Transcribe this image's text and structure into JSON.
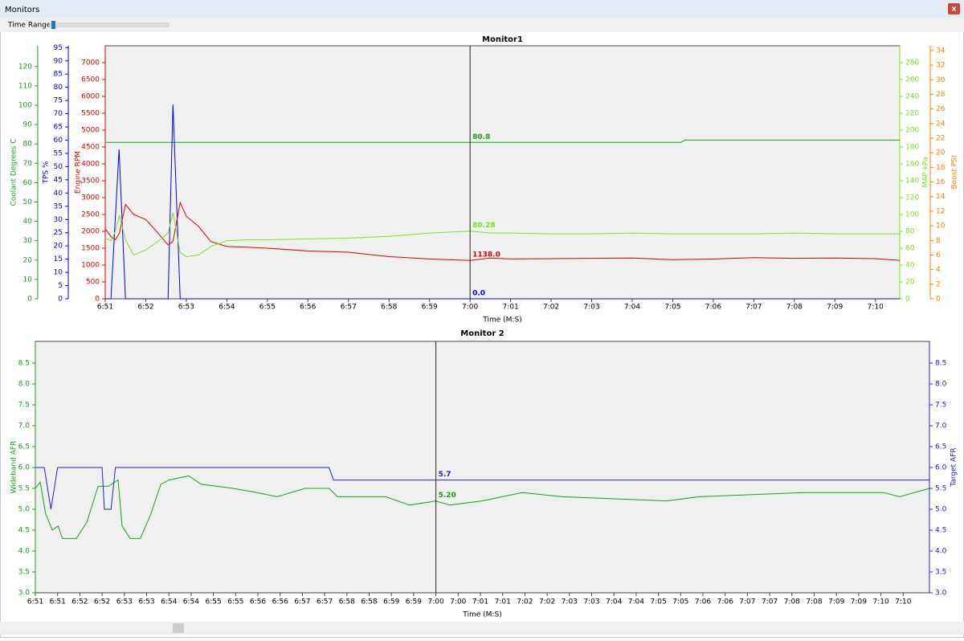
{
  "window": {
    "title": "Monitors",
    "close": "x"
  },
  "controls": {
    "time_range": "Time Range"
  },
  "chart_data": [
    {
      "type": "line",
      "title": "Monitor1",
      "x_label": "Time (M:S)",
      "xlim": [
        411,
        430.6
      ],
      "xticks": [
        {
          "value": 411,
          "label": "6:51"
        },
        {
          "value": 412,
          "label": "6:52"
        },
        {
          "value": 413,
          "label": "6:53"
        },
        {
          "value": 414,
          "label": "6:54"
        },
        {
          "value": 415,
          "label": "6:55"
        },
        {
          "value": 416,
          "label": "6:56"
        },
        {
          "value": 417,
          "label": "6:57"
        },
        {
          "value": 418,
          "label": "6:58"
        },
        {
          "value": 419,
          "label": "6:59"
        },
        {
          "value": 420,
          "label": "7:00"
        },
        {
          "value": 421,
          "label": "7:01"
        },
        {
          "value": 422,
          "label": "7:02"
        },
        {
          "value": 423,
          "label": "7:03"
        },
        {
          "value": 424,
          "label": "7:04"
        },
        {
          "value": 425,
          "label": "7:05"
        },
        {
          "value": 426,
          "label": "7:06"
        },
        {
          "value": 427,
          "label": "7:07"
        },
        {
          "value": 428,
          "label": "7:08"
        },
        {
          "value": 429,
          "label": "7:09"
        },
        {
          "value": 430,
          "label": "7:10"
        }
      ],
      "cursor": 420,
      "y_axes": [
        {
          "label": "Coolant Degrees C",
          "color": "#1a9e1a",
          "ylim": [
            0,
            130.7
          ],
          "yticks": [
            0,
            10,
            20,
            30,
            40,
            50,
            60,
            70,
            80,
            90,
            100,
            110,
            120
          ]
        },
        {
          "label": "TPS %",
          "color": "#0000ee",
          "ylim": [
            0,
            95.7
          ],
          "yticks": [
            0,
            5,
            10,
            15,
            20,
            25,
            30,
            35,
            40,
            45,
            50,
            55,
            60,
            65,
            70,
            75,
            80,
            85,
            90,
            95
          ]
        },
        {
          "label": "Engine RPM",
          "color": "#e00000",
          "ylim": [
            0,
            7500
          ],
          "yticks": [
            0,
            500,
            1000,
            1500,
            2000,
            2500,
            3000,
            3500,
            4000,
            4500,
            5000,
            5500,
            6000,
            6500,
            7000
          ]
        },
        {
          "label": "MAP kPa",
          "color": "#7ee01e",
          "ylim": [
            0,
            300
          ],
          "yticks": [
            0,
            20,
            40,
            60,
            80,
            100,
            120,
            140,
            160,
            180,
            200,
            220,
            240,
            260,
            280
          ]
        },
        {
          "label": "Boost PSI",
          "color": "#ff8000",
          "ylim": [
            0,
            34.65
          ],
          "yticks": [
            0,
            2,
            4,
            6,
            8,
            10,
            12,
            14,
            16,
            18,
            20,
            22,
            24,
            26,
            28,
            30,
            32,
            34
          ]
        }
      ],
      "series": [
        {
          "name": "Coolant Degrees C",
          "axis": 0,
          "color": "#1a9e1a",
          "cursor_label": "80.8",
          "x": [
            411,
            425.2,
            425.3,
            430.6
          ],
          "values": [
            80.8,
            80.8,
            82,
            82
          ]
        },
        {
          "name": "TPS %",
          "axis": 1,
          "color": "#0000ee",
          "cursor_label": "0.0",
          "x": [
            411,
            411.14,
            411.34,
            411.5,
            412.55,
            412.67,
            412.85,
            430.6
          ],
          "values": [
            0,
            0,
            56.5,
            0,
            0,
            73.5,
            0,
            0
          ]
        },
        {
          "name": "Engine RPM",
          "axis": 2,
          "color": "#e00000",
          "cursor_label": "1138.0",
          "x": [
            411,
            411.15,
            411.25,
            411.35,
            411.5,
            411.7,
            412,
            412.3,
            412.55,
            412.67,
            412.85,
            413,
            413.3,
            413.6,
            414,
            414.5,
            415,
            416,
            417,
            418,
            419,
            420,
            420.5,
            421,
            422,
            423,
            424,
            425,
            426,
            427,
            428,
            429,
            430,
            430.6
          ],
          "values": [
            2070,
            1830,
            1750,
            1950,
            2800,
            2500,
            2350,
            1950,
            1600,
            1700,
            2850,
            2450,
            2150,
            1700,
            1550,
            1530,
            1500,
            1420,
            1380,
            1250,
            1180,
            1138,
            1210,
            1180,
            1190,
            1200,
            1210,
            1160,
            1180,
            1220,
            1200,
            1210,
            1190,
            1140
          ]
        },
        {
          "name": "MAP kPa",
          "axis": 3,
          "color": "#7ee01e",
          "cursor_label": "80.28",
          "x": [
            411,
            411.15,
            411.25,
            411.35,
            411.5,
            411.7,
            412,
            412.3,
            412.55,
            412.67,
            412.85,
            413,
            413.3,
            413.6,
            414,
            414.5,
            415,
            416,
            417,
            418,
            419,
            420,
            420.5,
            421,
            422,
            423,
            424,
            425,
            426,
            427,
            428,
            429,
            430,
            430.6
          ],
          "values": [
            72,
            69,
            80,
            99,
            70,
            52,
            58,
            68,
            78,
            102,
            55,
            50,
            52,
            62,
            69,
            70,
            70,
            71,
            72,
            74,
            78,
            80.28,
            78,
            78,
            77,
            77,
            78,
            77,
            77,
            77,
            78,
            77,
            77,
            77
          ]
        }
      ]
    },
    {
      "type": "line",
      "title": "Monitor 2",
      "x_label": "Time (M:S)",
      "xlim": [
        411,
        431.09
      ],
      "xticks": [
        {
          "value": 411,
          "label": "6:51"
        },
        {
          "value": 411.5,
          "label": "6:51"
        },
        {
          "value": 412,
          "label": "6:52"
        },
        {
          "value": 412.5,
          "label": "6:52"
        },
        {
          "value": 413,
          "label": "6:53"
        },
        {
          "value": 413.5,
          "label": "6:53"
        },
        {
          "value": 414,
          "label": "6:54"
        },
        {
          "value": 414.5,
          "label": "6:54"
        },
        {
          "value": 415,
          "label": "6:55"
        },
        {
          "value": 415.5,
          "label": "6:55"
        },
        {
          "value": 416,
          "label": "6:56"
        },
        {
          "value": 416.5,
          "label": "6:56"
        },
        {
          "value": 417,
          "label": "6:57"
        },
        {
          "value": 417.5,
          "label": "6:57"
        },
        {
          "value": 418,
          "label": "6:58"
        },
        {
          "value": 418.5,
          "label": "6:58"
        },
        {
          "value": 419,
          "label": "6:59"
        },
        {
          "value": 419.5,
          "label": "6:59"
        },
        {
          "value": 420,
          "label": "7:00"
        },
        {
          "value": 420.5,
          "label": "7:00"
        },
        {
          "value": 421,
          "label": "7:01"
        },
        {
          "value": 421.5,
          "label": "7:01"
        },
        {
          "value": 422,
          "label": "7:02"
        },
        {
          "value": 422.5,
          "label": "7:02"
        },
        {
          "value": 423,
          "label": "7:03"
        },
        {
          "value": 423.5,
          "label": "7:03"
        },
        {
          "value": 424,
          "label": "7:04"
        },
        {
          "value": 424.5,
          "label": "7:04"
        },
        {
          "value": 425,
          "label": "7:05"
        },
        {
          "value": 425.5,
          "label": "7:05"
        },
        {
          "value": 426,
          "label": "7:06"
        },
        {
          "value": 426.5,
          "label": "7:06"
        },
        {
          "value": 427,
          "label": "7:07"
        },
        {
          "value": 427.5,
          "label": "7:07"
        },
        {
          "value": 428,
          "label": "7:08"
        },
        {
          "value": 428.5,
          "label": "7:08"
        },
        {
          "value": 429,
          "label": "7:09"
        },
        {
          "value": 429.5,
          "label": "7:09"
        },
        {
          "value": 430,
          "label": "7:10"
        },
        {
          "value": 430.5,
          "label": "7:10"
        }
      ],
      "cursor": 420,
      "y_axes": [
        {
          "label": "Wideband AFR",
          "color": "#1a9e1a",
          "ylim": [
            3,
            9.02
          ],
          "yticks": [
            {
              "value": 3,
              "label": "3.0"
            },
            {
              "value": 3.5,
              "label": "3.5"
            },
            {
              "value": 4,
              "label": "4.0"
            },
            {
              "value": 4.5,
              "label": "4.5"
            },
            {
              "value": 5,
              "label": "5.0"
            },
            {
              "value": 5.5,
              "label": "5.5"
            },
            {
              "value": 6,
              "label": "6.0"
            },
            {
              "value": 6.5,
              "label": "6.5"
            },
            {
              "value": 7,
              "label": "7.0"
            },
            {
              "value": 7.5,
              "label": "7.5"
            },
            {
              "value": 8,
              "label": "8.0"
            },
            {
              "value": 8.5,
              "label": "8.5"
            }
          ]
        },
        {
          "label": "Target AFR",
          "color": "#2222cc",
          "ylim": [
            3,
            9.02
          ],
          "yticks": [
            {
              "value": 3,
              "label": "3.0"
            },
            {
              "value": 3.5,
              "label": "3.5"
            },
            {
              "value": 4,
              "label": "4.0"
            },
            {
              "value": 4.5,
              "label": "4.5"
            },
            {
              "value": 5,
              "label": "5.0"
            },
            {
              "value": 5.5,
              "label": "5.5"
            },
            {
              "value": 6,
              "label": "6.0"
            },
            {
              "value": 6.5,
              "label": "6.5"
            },
            {
              "value": 7,
              "label": "7.0"
            },
            {
              "value": 7.5,
              "label": "7.5"
            },
            {
              "value": 8,
              "label": "8.0"
            },
            {
              "value": 8.5,
              "label": "8.5"
            }
          ]
        }
      ],
      "series": [
        {
          "name": "Wideband AFR",
          "axis": 0,
          "color": "#1a9e1a",
          "cursor_label": "5.20",
          "x": [
            411,
            411.11,
            411.23,
            411.38,
            411.51,
            411.61,
            411.92,
            412.16,
            412.41,
            412.64,
            412.86,
            412.95,
            413.13,
            413.36,
            413.6,
            413.82,
            414,
            414.45,
            414.72,
            415.44,
            415.98,
            416.43,
            417.06,
            417.6,
            417.79,
            418.87,
            419.41,
            420,
            420.31,
            421.04,
            421.94,
            422.84,
            425.19,
            425.91,
            428.26,
            430.06,
            430.42,
            431.09
          ],
          "values": [
            5.5,
            5.65,
            4.9,
            4.5,
            4.6,
            4.3,
            4.3,
            4.7,
            5.55,
            5.55,
            5.7,
            4.6,
            4.3,
            4.3,
            4.9,
            5.6,
            5.7,
            5.8,
            5.6,
            5.5,
            5.4,
            5.3,
            5.5,
            5.5,
            5.3,
            5.3,
            5.1,
            5.2,
            5.1,
            5.2,
            5.4,
            5.3,
            5.2,
            5.3,
            5.4,
            5.4,
            5.3,
            5.5
          ]
        },
        {
          "name": "Target AFR",
          "axis": 1,
          "color": "#2222cc",
          "cursor_label": "5.7",
          "x": [
            411,
            411.2,
            411.35,
            411.5,
            412.5,
            412.55,
            412.7,
            412.8,
            417.6,
            417.7,
            431.09
          ],
          "values": [
            6,
            6,
            5,
            6,
            6,
            5,
            5,
            6,
            6,
            5.7,
            5.7
          ]
        }
      ]
    }
  ]
}
